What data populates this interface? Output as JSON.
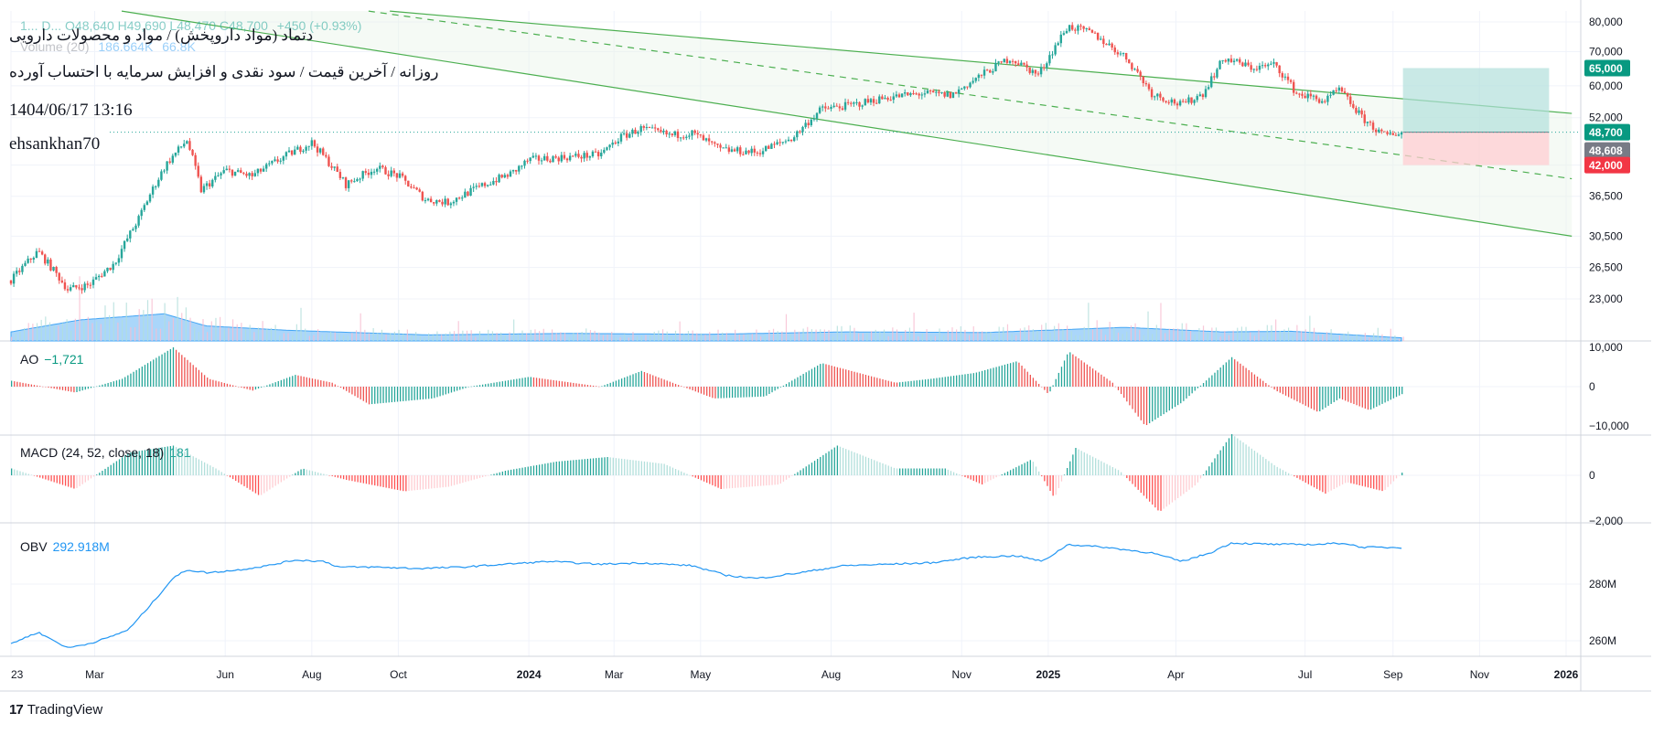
{
  "header": {
    "symbol_title": "دتماد (مواد داروپخش) / مواد و محصولات دارویی",
    "subtitle": "روزانه / آخرین قیمت / سود نقدی و افزایش سرمایه با احتساب آورده",
    "datetime": "1404/06/17 13:16",
    "username": "ehsankhan70",
    "ohlc_partial": "1... D... O48,640 H49,690 L48,470 C48,700",
    "change": "+450 (+0.93%)",
    "volume_label": "Volume (20)",
    "volume_ma": "186.664K",
    "volume_value": "66.8K"
  },
  "price_labels": {
    "take_profit": "65,000",
    "last": "48,700",
    "reference": "48,608",
    "stop_loss": "42,000"
  },
  "panes": {
    "ao": {
      "name": "AO",
      "value": "−1,721"
    },
    "macd": {
      "name": "MACD (24, 52, close, 18)",
      "value": "181"
    },
    "obv": {
      "name": "OBV",
      "value": "292.918M"
    }
  },
  "footer": {
    "brand": "TradingView"
  },
  "colors": {
    "up": "#26a69a",
    "down": "#ef5350",
    "volume": "#90caf9",
    "volume_area": "#64b5f6",
    "channel": "#4caf50",
    "obv": "#2196f3",
    "tp_zone": "#b2dfdb",
    "sl_zone": "#ffcdd2",
    "tp_label": "#089981",
    "sl_label": "#f23645",
    "ref_label": "#787b86"
  },
  "chart_data": [
    {
      "type": "candlestick",
      "title": "",
      "scale": "log",
      "y_ticks": [
        "80,000",
        "70,000",
        "60,000",
        "52,000",
        "42,000",
        "36,500",
        "30,500",
        "26,500",
        "23,000"
      ],
      "y_tick_values": [
        80000,
        70000,
        60000,
        52000,
        42000,
        36500,
        30500,
        26500,
        23000
      ],
      "x_ticks": [
        "23",
        "Mar",
        "Jun",
        "Aug",
        "Oct",
        "2024",
        "Mar",
        "May",
        "Aug",
        "Nov",
        "2025",
        "Apr",
        "Jul",
        "Sep",
        "Nov",
        "2026"
      ],
      "x_tick_dates": [
        "2023-01-01",
        "2023-03-01",
        "2023-06-01",
        "2023-08-01",
        "2023-10-01",
        "2024-01-01",
        "2024-03-01",
        "2024-05-01",
        "2024-08-01",
        "2024-11-01",
        "2025-01-01",
        "2025-04-01",
        "2025-07-01",
        "2025-09-01",
        "2025-11-01",
        "2026-01-01"
      ],
      "close_path": [
        [
          "2023-01-01",
          25000
        ],
        [
          "2023-01-20",
          28500
        ],
        [
          "2023-02-10",
          24000
        ],
        [
          "2023-02-25",
          24500
        ],
        [
          "2023-03-15",
          27000
        ],
        [
          "2023-04-01",
          33000
        ],
        [
          "2023-04-20",
          42000
        ],
        [
          "2023-05-05",
          47000
        ],
        [
          "2023-05-15",
          37500
        ],
        [
          "2023-06-01",
          41000
        ],
        [
          "2023-06-20",
          40000
        ],
        [
          "2023-07-15",
          44000
        ],
        [
          "2023-08-01",
          46500
        ],
        [
          "2023-08-25",
          38500
        ],
        [
          "2023-09-15",
          41500
        ],
        [
          "2023-10-01",
          40000
        ],
        [
          "2023-10-20",
          36000
        ],
        [
          "2023-11-05",
          35500
        ],
        [
          "2023-12-01",
          38500
        ],
        [
          "2023-12-20",
          40500
        ],
        [
          "2024-01-01",
          43000
        ],
        [
          "2024-01-25",
          43500
        ],
        [
          "2024-02-20",
          44000
        ],
        [
          "2024-03-05",
          47500
        ],
        [
          "2024-03-20",
          49500
        ],
        [
          "2024-04-10",
          48000
        ],
        [
          "2024-04-25",
          48500
        ],
        [
          "2024-05-15",
          45000
        ],
        [
          "2024-06-10",
          44500
        ],
        [
          "2024-07-05",
          47500
        ],
        [
          "2024-07-25",
          54000
        ],
        [
          "2024-08-15",
          55000
        ],
        [
          "2024-09-10",
          57000
        ],
        [
          "2024-10-05",
          58000
        ],
        [
          "2024-10-25",
          57500
        ],
        [
          "2024-11-15",
          63000
        ],
        [
          "2024-12-05",
          68000
        ],
        [
          "2024-12-25",
          63000
        ],
        [
          "2025-01-01",
          68000
        ],
        [
          "2025-01-15",
          78500
        ],
        [
          "2025-02-01",
          76000
        ],
        [
          "2025-02-25",
          68000
        ],
        [
          "2025-03-15",
          58000
        ],
        [
          "2025-04-05",
          55000
        ],
        [
          "2025-04-20",
          58000
        ],
        [
          "2025-05-05",
          68000
        ],
        [
          "2025-05-25",
          65000
        ],
        [
          "2025-06-10",
          66000
        ],
        [
          "2025-06-25",
          58000
        ],
        [
          "2025-07-15",
          56000
        ],
        [
          "2025-07-25",
          59000
        ],
        [
          "2025-08-10",
          52000
        ],
        [
          "2025-08-25",
          48000
        ],
        [
          "2025-09-08",
          48700
        ]
      ],
      "channel": {
        "upper": [
          [
            "2023-09-25",
            84000
          ],
          [
            "2026-01-05",
            53000
          ]
        ],
        "middle": [
          [
            "2023-09-10",
            84000
          ],
          [
            "2026-01-05",
            39500
          ]
        ],
        "lower": [
          [
            "2023-03-20",
            84000
          ],
          [
            "2026-01-05",
            30500
          ]
        ]
      },
      "position": {
        "entry": 48700,
        "take_profit": 65000,
        "stop_loss": 42000,
        "start": "2025-09-08",
        "end": "2025-12-20"
      }
    },
    {
      "type": "area",
      "title": "Volume (20)",
      "ma_value": "186.664K",
      "last_value": "66.8K",
      "profile": [
        [
          0,
          0.3
        ],
        [
          0.05,
          0.7
        ],
        [
          0.11,
          0.9
        ],
        [
          0.14,
          0.5
        ],
        [
          0.2,
          0.35
        ],
        [
          0.3,
          0.2
        ],
        [
          0.4,
          0.25
        ],
        [
          0.5,
          0.22
        ],
        [
          0.6,
          0.3
        ],
        [
          0.7,
          0.28
        ],
        [
          0.8,
          0.45
        ],
        [
          0.87,
          0.3
        ],
        [
          0.92,
          0.32
        ],
        [
          1,
          0.1
        ]
      ]
    },
    {
      "type": "bar",
      "title": "AO",
      "last_value": -1721,
      "y_ticks": [
        "10,000",
        "0",
        "−10,000"
      ],
      "y_tick_values": [
        10000,
        0,
        -10000
      ],
      "waves": [
        [
          "2023-01-01",
          1500
        ],
        [
          "2023-02-15",
          -1500
        ],
        [
          "2023-03-20",
          2000
        ],
        [
          "2023-04-25",
          10000
        ],
        [
          "2023-05-20",
          2000
        ],
        [
          "2023-06-20",
          -1000
        ],
        [
          "2023-07-20",
          3000
        ],
        [
          "2023-08-15",
          1000
        ],
        [
          "2023-09-10",
          -4500
        ],
        [
          "2023-10-25",
          -3000
        ],
        [
          "2023-11-20",
          0
        ],
        [
          "2024-01-01",
          2500
        ],
        [
          "2024-02-20",
          0
        ],
        [
          "2024-03-20",
          4000
        ],
        [
          "2024-05-10",
          -3000
        ],
        [
          "2024-06-15",
          -2500
        ],
        [
          "2024-07-25",
          6000
        ],
        [
          "2024-09-15",
          1000
        ],
        [
          "2024-10-10",
          2000
        ],
        [
          "2024-11-10",
          3500
        ],
        [
          "2024-12-10",
          6500
        ],
        [
          "2025-01-01",
          -2000
        ],
        [
          "2025-01-15",
          9000
        ],
        [
          "2025-02-15",
          1000
        ],
        [
          "2025-03-10",
          -10000
        ],
        [
          "2025-04-05",
          -4000
        ],
        [
          "2025-05-10",
          7500
        ],
        [
          "2025-06-10",
          -1000
        ],
        [
          "2025-07-10",
          -6500
        ],
        [
          "2025-07-25",
          -3000
        ],
        [
          "2025-08-15",
          -6000
        ],
        [
          "2025-09-08",
          -1721
        ]
      ]
    },
    {
      "type": "bar",
      "title": "MACD (24, 52, close, 18)",
      "last_value": 181,
      "y_ticks": [
        "0",
        "−2,000"
      ],
      "y_tick_values": [
        0,
        -2000
      ],
      "waves": [
        [
          "2023-01-01",
          300
        ],
        [
          "2023-02-15",
          -600
        ],
        [
          "2023-03-25",
          1000
        ],
        [
          "2023-04-25",
          1300
        ],
        [
          "2023-05-25",
          300
        ],
        [
          "2023-06-25",
          -900
        ],
        [
          "2023-07-25",
          300
        ],
        [
          "2023-08-25",
          -200
        ],
        [
          "2023-10-05",
          -700
        ],
        [
          "2023-11-05",
          -500
        ],
        [
          "2023-12-15",
          200
        ],
        [
          "2024-01-20",
          600
        ],
        [
          "2024-02-25",
          800
        ],
        [
          "2024-04-05",
          500
        ],
        [
          "2024-05-15",
          -600
        ],
        [
          "2024-06-25",
          -400
        ],
        [
          "2024-08-05",
          1300
        ],
        [
          "2024-09-15",
          300
        ],
        [
          "2024-10-20",
          300
        ],
        [
          "2024-11-15",
          -400
        ],
        [
          "2024-12-20",
          700
        ],
        [
          "2025-01-05",
          -1000
        ],
        [
          "2025-01-20",
          1200
        ],
        [
          "2025-02-20",
          200
        ],
        [
          "2025-03-20",
          -1600
        ],
        [
          "2025-04-15",
          -400
        ],
        [
          "2025-05-10",
          1800
        ],
        [
          "2025-06-10",
          400
        ],
        [
          "2025-07-15",
          -800
        ],
        [
          "2025-07-30",
          -300
        ],
        [
          "2025-08-25",
          -700
        ],
        [
          "2025-09-08",
          181
        ]
      ]
    },
    {
      "type": "line",
      "title": "OBV",
      "last_value": "292.918M",
      "y_ticks": [
        "280M",
        "260M"
      ],
      "y_tick_values": [
        280,
        260
      ],
      "points": [
        [
          "2023-01-01",
          259
        ],
        [
          "2023-01-20",
          263
        ],
        [
          "2023-02-10",
          257.5
        ],
        [
          "2023-02-25",
          259
        ],
        [
          "2023-03-10",
          261
        ],
        [
          "2023-03-25",
          264
        ],
        [
          "2023-04-10",
          273
        ],
        [
          "2023-04-25",
          282
        ],
        [
          "2023-05-05",
          285
        ],
        [
          "2023-05-20",
          284
        ],
        [
          "2023-06-10",
          285
        ],
        [
          "2023-07-01",
          286.5
        ],
        [
          "2023-07-20",
          288.5
        ],
        [
          "2023-08-10",
          288
        ],
        [
          "2023-08-20",
          286
        ],
        [
          "2023-09-15",
          286
        ],
        [
          "2023-10-15",
          285.5
        ],
        [
          "2023-11-15",
          286
        ],
        [
          "2023-12-15",
          287
        ],
        [
          "2024-01-15",
          288
        ],
        [
          "2024-02-20",
          287
        ],
        [
          "2024-03-20",
          287.5
        ],
        [
          "2024-04-25",
          286.5
        ],
        [
          "2024-05-20",
          283
        ],
        [
          "2024-06-10",
          282
        ],
        [
          "2024-07-10",
          284
        ],
        [
          "2024-08-10",
          286.5
        ],
        [
          "2024-09-10",
          287
        ],
        [
          "2024-10-10",
          287.5
        ],
        [
          "2024-11-10",
          289.5
        ],
        [
          "2024-12-10",
          290
        ],
        [
          "2024-12-28",
          288
        ],
        [
          "2025-01-15",
          294
        ],
        [
          "2025-02-10",
          293
        ],
        [
          "2025-03-15",
          291
        ],
        [
          "2025-04-05",
          288
        ],
        [
          "2025-04-25",
          291
        ],
        [
          "2025-05-10",
          294.5
        ],
        [
          "2025-06-10",
          294
        ],
        [
          "2025-07-10",
          294
        ],
        [
          "2025-07-28",
          294.5
        ],
        [
          "2025-08-10",
          293
        ],
        [
          "2025-09-08",
          292.9
        ]
      ]
    }
  ]
}
